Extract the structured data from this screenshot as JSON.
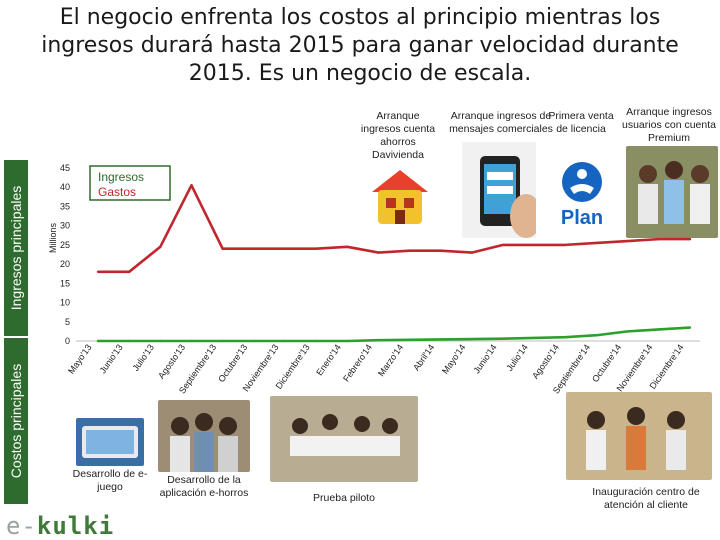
{
  "title": "El negocio enfrenta los costos al principio mientras los ingresos durará hasta 2015 para ganar velocidad durante 2015. Es un negocio de escala.",
  "side_labels": {
    "top": "Ingresos principales",
    "bottom": "Costos principales"
  },
  "annotations": {
    "a1": "Arranque ingresos cuenta ahorros Davivienda",
    "a2": "Arranque ingresos de mensajes comerciales",
    "a3": "Primera venta de licencia",
    "a4": "Arranque ingresos usuarios con cuenta Premium"
  },
  "captions": {
    "c1": "Desarrollo de e-juego",
    "c2": "Desarrollo de la aplicación e-horros",
    "c3": "Prueba piloto",
    "c4": "Inauguración centro de atención al cliente"
  },
  "logo": {
    "prefix": "e-",
    "name": "kulki"
  },
  "plan_logo_text": "Plan",
  "colors": {
    "ingresos": "#2ca02c",
    "gastos": "#c0272d",
    "accent": "#2e6b2e"
  },
  "chart_data": {
    "type": "line",
    "ylabel": "Millions",
    "ylim": [
      0,
      45
    ],
    "yticks": [
      0,
      5,
      10,
      15,
      20,
      25,
      30,
      35,
      40,
      45
    ],
    "grid": false,
    "legend_position": "top-left",
    "categories": [
      "Mayo'13",
      "Junio'13",
      "Julio'13",
      "Agosto'13",
      "Septiembre'13",
      "Octubre'13",
      "Noviembre'13",
      "Diciembre'13",
      "Enero'14",
      "Febrero'14",
      "Marzo'14",
      "Abril'14",
      "Mayo'14",
      "Junio'14",
      "Julio'14",
      "Agosto'14",
      "Septiembre'14",
      "Octubre'14",
      "Noviembre'14",
      "Diciembre'14"
    ],
    "series": [
      {
        "name": "Ingresos",
        "values": [
          0,
          0,
          0,
          0,
          0,
          0,
          0,
          0,
          0,
          0.2,
          0.3,
          0.4,
          0.5,
          0.6,
          0.8,
          1,
          1.5,
          2.5,
          3,
          3.5
        ]
      },
      {
        "name": "Gastos",
        "values": [
          18,
          18,
          24.5,
          40.5,
          24,
          24,
          24,
          24,
          24.5,
          23,
          23.5,
          23.5,
          23,
          25,
          25,
          25,
          25.5,
          26,
          26.5,
          26.5
        ]
      }
    ]
  }
}
